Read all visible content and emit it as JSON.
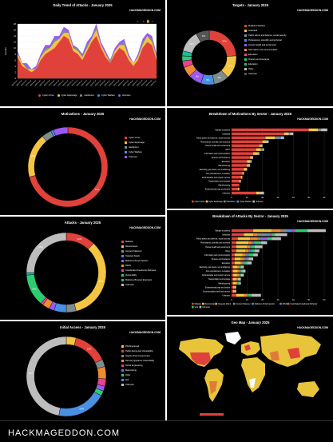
{
  "footer": "HACKMAGEDDON.COM",
  "brand": "HACKMAGEDDON.COM",
  "colors": {
    "red": "#e0413a",
    "yellow": "#f4c542",
    "gray": "#7f8c8d",
    "blue": "#4a90e2",
    "purple": "#9b59f6",
    "orange": "#ee8a33",
    "pink": "#e84393",
    "green": "#2ecc71",
    "lightgray": "#bdbdbd",
    "darkred": "#b5342f",
    "teal": "#1abc9c"
  },
  "trend": {
    "title": "Daily Trend of Attacks - January 2025",
    "toolbar": [
      "+",
      "-",
      "⌕",
      "✋",
      "⌂"
    ],
    "legend": [
      "Cyber Crime",
      "Cyber Espionage",
      "Hacktivism",
      "Cyber Warfare",
      "Unknown"
    ]
  },
  "targets": {
    "title": "Targets - January 2025",
    "legend": [
      "Multiple Industries",
      "Individual",
      "Public admin and defense, social security",
      "Professional, scientific and technical",
      "Human health and social work",
      "Information and communication",
      "Education",
      "Finance and insurance",
      "Education",
      "Other",
      "Unknown"
    ]
  },
  "motivations": {
    "title": "Motivations - January 2025",
    "legend": [
      "Cyber Crime",
      "Cyber Espionage",
      "Hacktivism",
      "Cyber Warfare",
      "Unknown"
    ],
    "labels": [
      "71%"
    ]
  },
  "breakdown_motivations": {
    "title": "Breakdown of Motivations By Sector - January 2025",
    "legend": [
      "Cyber Crime",
      "Cyber Espionage",
      "Hacktivism",
      "Cyber Warfare",
      "Unknown"
    ]
  },
  "attacks": {
    "title": "Attacks - January 2025",
    "legend": [
      "Malware",
      "Ransomware",
      "Account Takeover",
      "Targeted Attack",
      "Malicious Script Injection",
      "DDoS",
      "Coordinated Inauthentic Behavior",
      "Vulnerability",
      "Malicious Browser Extension",
      "Unknown"
    ]
  },
  "breakdown_attacks": {
    "title": "Breakdown of Attacks By Sector - January 2025",
    "legend": [
      "Malware",
      "Ransomware",
      "Targeted Attack",
      "Account Takeover",
      "Malicious Script Injection",
      "DDoS",
      "Coordinated Inauthentic Behavior",
      "Vuln",
      "Unknown"
    ]
  },
  "initial_access": {
    "title": "Initial Access - January 2025",
    "legend": [
      "Phishing Email",
      "Public-facing App Vulnerability",
      "Supply Chain Compromise",
      "Security Appliance Vulnerability",
      "Social Engineering",
      "Malvertising",
      "Other",
      "N/A",
      "Unknown"
    ]
  },
  "geomap": {
    "title": "Geo Map - January 2025"
  },
  "chart_data": [
    {
      "type": "area",
      "title": "Daily Trend of Attacks - January 2025",
      "xlabel": "",
      "ylabel": "Counts",
      "ylim": [
        0,
        18
      ],
      "y_ticks": [
        0,
        2,
        4,
        6,
        8,
        10,
        12,
        14,
        16,
        18
      ],
      "x_points": 31,
      "series": [
        {
          "name": "Cyber Crime",
          "values": [
            7,
            4,
            3,
            2,
            3,
            6,
            8,
            9,
            10,
            12,
            14,
            13,
            9,
            8,
            6,
            9,
            12,
            14,
            10,
            7,
            5,
            8,
            10,
            9,
            6,
            4,
            6,
            10,
            12,
            11,
            6
          ]
        },
        {
          "name": "Cyber Espionage",
          "values": [
            1,
            1,
            0,
            1,
            0,
            1,
            1,
            1,
            2,
            1,
            1,
            2,
            1,
            1,
            1,
            1,
            1,
            2,
            1,
            1,
            0,
            1,
            1,
            2,
            1,
            1,
            1,
            1,
            2,
            1,
            1
          ]
        },
        {
          "name": "Hacktivism",
          "values": [
            0,
            0,
            1,
            0,
            0,
            0,
            1,
            0,
            1,
            0,
            1,
            0,
            0,
            1,
            0,
            1,
            0,
            1,
            0,
            0,
            1,
            0,
            0,
            1,
            0,
            0,
            0,
            1,
            0,
            1,
            0
          ]
        },
        {
          "name": "Cyber Warfare",
          "values": [
            0,
            0,
            0,
            0,
            0,
            0,
            0,
            0,
            0,
            0,
            0,
            0,
            0,
            0,
            0,
            0,
            0,
            0,
            0,
            0,
            0,
            0,
            0,
            0,
            0,
            0,
            0,
            0,
            0,
            0,
            0
          ]
        },
        {
          "name": "Unknown",
          "values": [
            1,
            0,
            1,
            0,
            1,
            1,
            1,
            1,
            1,
            1,
            1,
            1,
            1,
            0,
            1,
            1,
            1,
            1,
            1,
            1,
            0,
            1,
            1,
            1,
            1,
            0,
            1,
            1,
            1,
            1,
            1
          ]
        }
      ]
    },
    {
      "type": "pie",
      "title": "Targets - January 2025",
      "categories": [
        "Multiple Industries",
        "Individual",
        "Public admin and defense, social security",
        "Professional, scientific and technical",
        "Human health and social work",
        "Information and communication",
        "Education",
        "Finance and insurance",
        "Education",
        "Other",
        "Unknown"
      ],
      "values": [
        24,
        14,
        9,
        8,
        8,
        6,
        4,
        3,
        3,
        13,
        8
      ]
    },
    {
      "type": "pie",
      "title": "Motivations - January 2025",
      "categories": [
        "Cyber Crime",
        "Cyber Espionage",
        "Hacktivism",
        "Cyber Warfare",
        "Unknown"
      ],
      "values": [
        71,
        18,
        4,
        1,
        6
      ]
    },
    {
      "type": "bar",
      "title": "Breakdown of Motivations By Sector - January 2025",
      "categories": [
        "Multiple Industries",
        "Individual",
        "Public admin and defense, social security",
        "Professional, scientific and technical",
        "Human health and social work",
        "Other",
        "Information and communication",
        "Finance and insurance",
        "Education",
        "Manufacturing",
        "Electricity, gas steam, air conditioning",
        "Arts entertainment, recreation",
        "Administrative and support service",
        "Transportation and storage",
        "Manufacturing",
        "Extraterritorial orgs and bodies",
        "Unknown"
      ],
      "series": [
        {
          "name": "Cyber Crime",
          "values": [
            50,
            34,
            22,
            20,
            18,
            16,
            14,
            12,
            10,
            10,
            8,
            7,
            6,
            5,
            5,
            4,
            16
          ]
        },
        {
          "name": "Cyber Espionage",
          "values": [
            6,
            3,
            6,
            2,
            1,
            3,
            3,
            1,
            2,
            1,
            2,
            1,
            1,
            1,
            0,
            1,
            2
          ]
        },
        {
          "name": "Hacktivism",
          "values": [
            2,
            1,
            3,
            0,
            0,
            1,
            0,
            0,
            0,
            0,
            0,
            0,
            0,
            0,
            0,
            0,
            0
          ]
        },
        {
          "name": "Cyber Warfare",
          "values": [
            0,
            0,
            1,
            0,
            0,
            0,
            0,
            0,
            0,
            0,
            0,
            0,
            0,
            0,
            0,
            0,
            0
          ]
        },
        {
          "name": "Unknown",
          "values": [
            4,
            2,
            2,
            2,
            1,
            1,
            1,
            1,
            1,
            1,
            0,
            0,
            0,
            0,
            0,
            0,
            3
          ]
        }
      ],
      "x_ticks": [
        0,
        10,
        20,
        30,
        40,
        50,
        60
      ]
    },
    {
      "type": "pie",
      "title": "Attacks - January 2025",
      "categories": [
        "Malware",
        "Ransomware",
        "Account Takeover",
        "Targeted Attack",
        "Malicious Script Injection",
        "DDoS",
        "Coordinated Inauthentic Behavior",
        "Vulnerability",
        "Malicious Browser Extension",
        "Unknown"
      ],
      "values": [
        12,
        34,
        4,
        5,
        2,
        3,
        1,
        13,
        1,
        25
      ]
    },
    {
      "type": "bar",
      "title": "Breakdown of Attacks By Sector - January 2025",
      "categories": [
        "Multiple Industries",
        "Individual",
        "Public admin and defense, social security",
        "Professional, scientific and technical",
        "Human health and social work",
        "Other",
        "Information and communication",
        "Finance and insurance",
        "Education",
        "Electricity, gas steam, air conditioning",
        "Arts entertainment, recreation",
        "Administrative and support service",
        "Transportation and storage",
        "Manufacturing",
        "Extraterritorial orgs and bodies",
        "Accommodation and food service",
        "Unknown"
      ],
      "series": [
        {
          "name": "Malware",
          "values": [
            14,
            8,
            4,
            3,
            3,
            3,
            2,
            2,
            2,
            1,
            1,
            1,
            1,
            1,
            1,
            1,
            3
          ]
        },
        {
          "name": "Ransomware",
          "values": [
            12,
            6,
            8,
            8,
            7,
            6,
            5,
            4,
            4,
            3,
            3,
            3,
            2,
            2,
            1,
            1,
            5
          ]
        },
        {
          "name": "Targeted Attack",
          "values": [
            6,
            3,
            5,
            2,
            2,
            2,
            2,
            2,
            1,
            1,
            1,
            1,
            1,
            1,
            0,
            0,
            2
          ]
        },
        {
          "name": "Account Takeover",
          "values": [
            4,
            6,
            2,
            1,
            1,
            1,
            1,
            1,
            1,
            0,
            1,
            0,
            0,
            0,
            0,
            0,
            1
          ]
        },
        {
          "name": "Malicious Script Injection",
          "values": [
            3,
            2,
            1,
            1,
            0,
            1,
            1,
            0,
            0,
            0,
            0,
            0,
            0,
            0,
            0,
            0,
            0
          ]
        },
        {
          "name": "DDoS",
          "values": [
            1,
            0,
            3,
            0,
            0,
            0,
            0,
            1,
            0,
            0,
            0,
            0,
            0,
            0,
            0,
            0,
            0
          ]
        },
        {
          "name": "Coordinated Inauthentic Behavior",
          "values": [
            1,
            1,
            0,
            0,
            0,
            0,
            0,
            0,
            0,
            0,
            0,
            0,
            0,
            0,
            0,
            0,
            0
          ]
        },
        {
          "name": "Vuln",
          "values": [
            8,
            2,
            3,
            4,
            2,
            2,
            3,
            1,
            2,
            1,
            1,
            1,
            0,
            1,
            0,
            0,
            2
          ]
        },
        {
          "name": "Unknown",
          "values": [
            12,
            8,
            6,
            4,
            5,
            3,
            3,
            3,
            3,
            2,
            2,
            2,
            2,
            1,
            1,
            1,
            6
          ]
        }
      ],
      "x_ticks": [
        0,
        10,
        20,
        30,
        40,
        50,
        60
      ]
    },
    {
      "type": "pie",
      "title": "Initial Access - January 2025",
      "categories": [
        "Phishing Email",
        "Public-facing App Vulnerability",
        "Supply Chain Compromise",
        "Security Appliance Vulnerability",
        "Social Engineering",
        "Malvertising",
        "Other",
        "N/A",
        "Unknown"
      ],
      "values": [
        4,
        14,
        3,
        5,
        3,
        2,
        2,
        20,
        47
      ]
    }
  ]
}
